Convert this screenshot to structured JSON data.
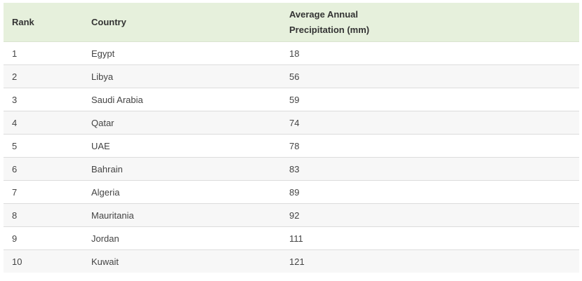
{
  "table": {
    "headers": {
      "rank": "Rank",
      "country": "Country",
      "precip_line1": "Average Annual",
      "precip_line2": "Precipitation (mm)"
    },
    "rows": [
      {
        "rank": "1",
        "country": "Egypt",
        "precip": "18"
      },
      {
        "rank": "2",
        "country": "Libya",
        "precip": "56"
      },
      {
        "rank": "3",
        "country": "Saudi Arabia",
        "precip": "59"
      },
      {
        "rank": "4",
        "country": "Qatar",
        "precip": "74"
      },
      {
        "rank": "5",
        "country": "UAE",
        "precip": "78"
      },
      {
        "rank": "6",
        "country": "Bahrain",
        "precip": "83"
      },
      {
        "rank": "7",
        "country": "Algeria",
        "precip": "89"
      },
      {
        "rank": "8",
        "country": "Mauritania",
        "precip": "92"
      },
      {
        "rank": "9",
        "country": "Jordan",
        "precip": "111"
      },
      {
        "rank": "10",
        "country": "Kuwait",
        "precip": "121"
      }
    ]
  },
  "colors": {
    "header_bg": "#e6f0dc",
    "row_alt_bg": "#f7f7f7",
    "border": "#dcdcdc"
  }
}
